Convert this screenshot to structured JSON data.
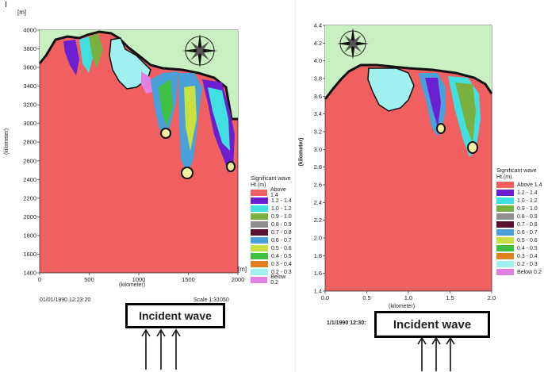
{
  "figure_label": "I",
  "left_panel": {
    "y_unit": "[m]",
    "y_axis_label": "(kilometer)",
    "x_axis_label": "(kilometer)",
    "y_ticks": [
      "4000",
      "3800",
      "3600",
      "3400",
      "3200",
      "3000",
      "2800",
      "2600",
      "2400",
      "2200",
      "2000",
      "1800",
      "1600",
      "1400"
    ],
    "x_ticks": [
      "0",
      "500",
      "1000",
      "1500",
      "2000"
    ],
    "x_unit": "[m]",
    "timestamp": "01/01/1990 12:23:20",
    "scale": "Scale 1:31050",
    "legend_title": [
      "Significant wave",
      "Ht.(m)"
    ],
    "legend_items": [
      "Above 1.4",
      "1.2 - 1.4",
      "1.0 - 1.2",
      "0.9 - 1.0",
      "0.8 - 0.9",
      "0.7 - 0.8",
      "0.6 - 0.7",
      "0.5 - 0.6",
      "0.4 - 0.5",
      "0.3 - 0.4",
      "0.2 - 0.3",
      "Below 0.2"
    ],
    "incident_label": "Incident wave"
  },
  "right_panel": {
    "y_axis_label": "(kilometer)",
    "x_axis_label": "(kilometer)",
    "y_ticks": [
      "4.4",
      "4.2",
      "4.0",
      "3.8",
      "3.6",
      "3.4",
      "3.2",
      "3.0",
      "2.8",
      "2.6",
      "2.4",
      "2.2",
      "2.0",
      "1.8",
      "1.6",
      "1.4"
    ],
    "x_ticks": [
      "0.0",
      "0.5",
      "1.0",
      "1.5",
      "2.0"
    ],
    "timestamp": "1/1/1990 12:30:",
    "legend_title": [
      "Significant wave",
      "Ht.(m)"
    ],
    "legend_items": [
      "Above 1.4",
      "1.2 - 1.4",
      "1.0 - 1.2",
      "0.9 - 1.0",
      "0.8 - 0.9",
      "0.7 - 0.8",
      "0.6 - 0.7",
      "0.5 - 0.6",
      "0.4 - 0.5",
      "0.3 - 0.4",
      "0.2 - 0.3",
      "Below 0.2"
    ],
    "incident_label": "Incident wave"
  },
  "colors": {
    "above_1_4": "#f06060",
    "land": "#c8f0c0",
    "legend": [
      "#f06060",
      "#6b1fd0",
      "#40e0e0",
      "#7ab040",
      "#909090",
      "#5a1030",
      "#4aa0d8",
      "#c8e040",
      "#40c040",
      "#e08020",
      "#a0f0f0",
      "#e080e0"
    ]
  },
  "chart_data": [
    {
      "type": "heatmap",
      "title": "",
      "xlabel": "(kilometer)",
      "ylabel": "(kilometer)",
      "xlim": [
        0,
        2000
      ],
      "ylim": [
        1400,
        4000
      ],
      "x_unit": "m",
      "y_unit": "m",
      "value_name": "Significant wave Ht.(m)",
      "classes": [
        "Above 1.4",
        "1.2 - 1.4",
        "1.0 - 1.2",
        "0.9 - 1.0",
        "0.8 - 0.9",
        "0.7 - 0.8",
        "0.6 - 0.7",
        "0.5 - 0.6",
        "0.4 - 0.5",
        "0.3 - 0.4",
        "0.2 - 0.3",
        "Below 0.2"
      ],
      "timestamp": "01/01/1990 12:23:20",
      "scale": "Scale 1:31050"
    },
    {
      "type": "heatmap",
      "title": "",
      "xlabel": "(kilometer)",
      "ylabel": "(kilometer)",
      "xlim": [
        0,
        2
      ],
      "ylim": [
        1.4,
        4.4
      ],
      "value_name": "Significant wave Ht.(m)",
      "classes": [
        "Above 1.4",
        "1.2 - 1.4",
        "1.0 - 1.2",
        "0.9 - 1.0",
        "0.8 - 0.9",
        "0.7 - 0.8",
        "0.6 - 0.7",
        "0.5 - 0.6",
        "0.4 - 0.5",
        "0.3 - 0.4",
        "0.2 - 0.3",
        "Below 0.2"
      ],
      "timestamp": "1/1/1990 12:30:"
    }
  ]
}
